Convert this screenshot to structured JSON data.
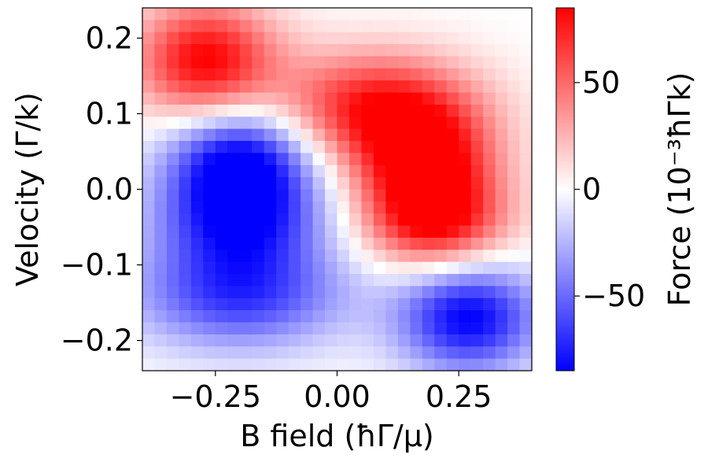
{
  "chart_data": {
    "type": "heatmap",
    "title": "",
    "xlabel": "B field (ħΓ/μ)",
    "ylabel": "Velocity (Γ/k)",
    "colorbar_label": "Force (10⁻³ħΓk)",
    "xlim": [
      -0.4,
      0.4
    ],
    "ylim": [
      -0.24,
      0.24
    ],
    "x_ticks": [
      -0.25,
      0.0,
      0.25
    ],
    "x_tick_labels": [
      "−0.25",
      "0.00",
      "0.25"
    ],
    "y_ticks": [
      0.2,
      0.1,
      0.0,
      -0.1,
      -0.2
    ],
    "y_tick_labels": [
      "0.2",
      "0.1",
      "0.0",
      "−0.1",
      "−0.2"
    ],
    "color_range": [
      -85,
      85
    ],
    "colorbar_ticks": [
      50,
      0,
      -50
    ],
    "colorbar_tick_labels": [
      "50",
      "0",
      "−50"
    ],
    "colormap": "bwr",
    "colors": {
      "low": "#0000ff",
      "mid": "#ffffff",
      "high": "#ff0000"
    },
    "grid": {
      "nx": 32,
      "ny": 30
    },
    "features": [
      {
        "b": -0.27,
        "v": 0.17,
        "force": 85,
        "spread_b": 0.1,
        "spread_v": 0.055
      },
      {
        "b": -0.2,
        "v": 0.04,
        "force": -85,
        "spread_b": 0.1,
        "spread_v": 0.05
      },
      {
        "b": -0.2,
        "v": -0.04,
        "force": -70,
        "spread_b": 0.12,
        "spread_v": 0.05
      },
      {
        "b": -0.2,
        "v": -0.14,
        "force": -65,
        "spread_b": 0.15,
        "spread_v": 0.05
      },
      {
        "b": 0.08,
        "v": 0.11,
        "force": 75,
        "spread_b": 0.14,
        "spread_v": 0.05
      },
      {
        "b": 0.18,
        "v": 0.04,
        "force": 80,
        "spread_b": 0.1,
        "spread_v": 0.05
      },
      {
        "b": 0.2,
        "v": -0.04,
        "force": 85,
        "spread_b": 0.1,
        "spread_v": 0.045
      },
      {
        "b": 0.27,
        "v": -0.17,
        "force": -85,
        "spread_b": 0.1,
        "spread_v": 0.05
      }
    ]
  }
}
